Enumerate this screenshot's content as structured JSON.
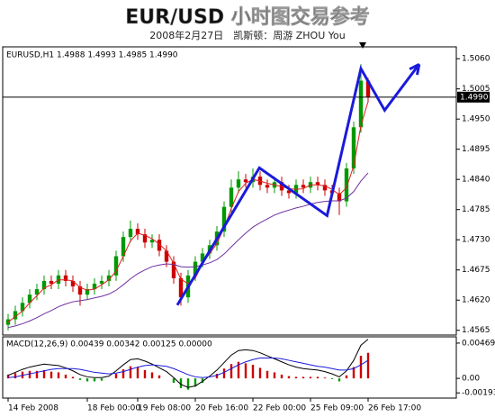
{
  "chart_data": {
    "type": "candlestick",
    "title": "EUR/USD 小时图交易参考",
    "subtitle": "2008年2月27日　凯斯顿：周游 ZHOU You",
    "header_label": "EURUSD,H1  1.4988 1.4993 1.4985 1.4990",
    "up_color": "#009900",
    "down_color": "#cc0000",
    "open": [
      1.4575,
      1.4585,
      1.46,
      1.4615,
      1.463,
      1.464,
      1.4655,
      1.465,
      1.4665,
      1.4655,
      1.4645,
      1.463,
      1.464,
      1.465,
      1.4655,
      1.4665,
      1.47,
      1.4735,
      1.475,
      1.474,
      1.4725,
      1.473,
      1.471,
      1.469,
      1.466,
      1.4625,
      1.4665,
      1.469,
      1.4705,
      1.472,
      1.4745,
      1.479,
      1.4825,
      1.484,
      1.4835,
      1.4845,
      1.483,
      1.4825,
      1.4835,
      1.482,
      1.4815,
      1.483,
      1.4825,
      1.4835,
      1.483,
      1.482,
      1.4815,
      1.48,
      1.486,
      1.4935,
      1.502
    ],
    "high": [
      1.4595,
      1.461,
      1.4625,
      1.464,
      1.465,
      1.4665,
      1.4665,
      1.4675,
      1.4675,
      1.4665,
      1.4655,
      1.465,
      1.466,
      1.4665,
      1.4675,
      1.471,
      1.4745,
      1.4765,
      1.476,
      1.475,
      1.474,
      1.474,
      1.472,
      1.47,
      1.467,
      1.4675,
      1.47,
      1.4715,
      1.473,
      1.4755,
      1.48,
      1.484,
      1.4855,
      1.485,
      1.486,
      1.4855,
      1.484,
      1.4845,
      1.4845,
      1.483,
      1.484,
      1.484,
      1.4845,
      1.4845,
      1.484,
      1.483,
      1.4825,
      1.487,
      1.4945,
      1.505,
      1.5025
    ],
    "low": [
      1.4565,
      1.4575,
      1.459,
      1.4605,
      1.462,
      1.463,
      1.464,
      1.464,
      1.4645,
      1.4635,
      1.461,
      1.462,
      1.463,
      1.464,
      1.4645,
      1.4655,
      1.469,
      1.4725,
      1.473,
      1.4715,
      1.4715,
      1.47,
      1.468,
      1.465,
      1.461,
      1.4615,
      1.4655,
      1.468,
      1.4695,
      1.471,
      1.4735,
      1.478,
      1.4815,
      1.4825,
      1.4825,
      1.482,
      1.4815,
      1.4815,
      1.481,
      1.4805,
      1.4805,
      1.4815,
      1.4815,
      1.482,
      1.481,
      1.4805,
      1.4775,
      1.479,
      1.485,
      1.4925,
      1.498
    ],
    "close": [
      1.4585,
      1.46,
      1.4615,
      1.463,
      1.464,
      1.4655,
      1.465,
      1.4665,
      1.4655,
      1.4645,
      1.463,
      1.464,
      1.465,
      1.4655,
      1.4665,
      1.47,
      1.4735,
      1.475,
      1.474,
      1.4725,
      1.473,
      1.471,
      1.469,
      1.466,
      1.4625,
      1.4665,
      1.469,
      1.4705,
      1.472,
      1.4745,
      1.479,
      1.4825,
      1.484,
      1.4835,
      1.4845,
      1.483,
      1.4825,
      1.4835,
      1.482,
      1.4815,
      1.483,
      1.4825,
      1.4835,
      1.483,
      1.482,
      1.4815,
      1.48,
      1.486,
      1.4935,
      1.502,
      1.499
    ],
    "moving_averages": [
      {
        "color": "#e02020",
        "values": [
          1.458,
          1.459,
          1.46,
          1.4615,
          1.4628,
          1.4642,
          1.4648,
          1.4657,
          1.4657,
          1.4655,
          1.4643,
          1.4638,
          1.464,
          1.4648,
          1.4657,
          1.4673,
          1.47,
          1.4728,
          1.4742,
          1.4738,
          1.4732,
          1.4722,
          1.471,
          1.4687,
          1.4658,
          1.465,
          1.466,
          1.4687,
          1.4705,
          1.4723,
          1.4752,
          1.4787,
          1.4818,
          1.4833,
          1.484,
          1.4837,
          1.4833,
          1.483,
          1.4827,
          1.4823,
          1.4822,
          1.4823,
          1.483,
          1.483,
          1.4828,
          1.4822,
          1.4812,
          1.4825,
          1.4865,
          1.4938,
          1.4982
        ]
      },
      {
        "color": "#7030a0",
        "values": [
          1.457,
          1.4573,
          1.4577,
          1.4582,
          1.4588,
          1.4595,
          1.4601,
          1.4608,
          1.4613,
          1.4617,
          1.4619,
          1.4621,
          1.4624,
          1.4627,
          1.4631,
          1.4638,
          1.4648,
          1.4659,
          1.4668,
          1.4675,
          1.4681,
          1.4684,
          1.4686,
          1.4685,
          1.4681,
          1.468,
          1.4681,
          1.4684,
          1.4688,
          1.4694,
          1.4704,
          1.4717,
          1.473,
          1.4742,
          1.4753,
          1.4761,
          1.4768,
          1.4775,
          1.478,
          1.4784,
          1.4788,
          1.4791,
          1.4795,
          1.4798,
          1.48,
          1.4801,
          1.4801,
          1.4806,
          1.4818,
          1.4837,
          1.4852
        ]
      }
    ],
    "trend_line": {
      "color": "#1a1adb",
      "x": [
        23.5,
        34.9,
        44.3,
        49,
        52.3,
        57.1
      ],
      "y": [
        1.4611,
        1.4861,
        1.4774,
        1.5042,
        1.4966,
        1.505
      ]
    },
    "last_price": {
      "value": 1.499,
      "label": "1.4990"
    },
    "xlim": [
      -0.5,
      62
    ],
    "xticks": [
      {
        "value": 0,
        "label": "14 Feb 2008"
      },
      {
        "value": 11,
        "label": "18 Feb 00:00"
      },
      {
        "value": 18,
        "label": "19 Feb 08:00"
      },
      {
        "value": 26,
        "label": "20 Feb 16:00"
      },
      {
        "value": 34,
        "label": "22 Feb 00:00"
      },
      {
        "value": 42,
        "label": "25 Feb 09:00"
      },
      {
        "value": 50,
        "label": "26 Feb 17:00"
      }
    ],
    "ylim": [
      1.4558,
      1.508
    ],
    "yticks": [
      {
        "value": 1.506,
        "label": "1.5060"
      },
      {
        "value": 1.5005,
        "label": "1.5005"
      },
      {
        "value": 1.495,
        "label": "1.4950"
      },
      {
        "value": 1.4895,
        "label": "1.4895"
      },
      {
        "value": 1.484,
        "label": "1.4840"
      },
      {
        "value": 1.4785,
        "label": "1.4785"
      },
      {
        "value": 1.473,
        "label": "1.4730"
      },
      {
        "value": 1.4675,
        "label": "1.4675"
      },
      {
        "value": 1.462,
        "label": "1.4620"
      },
      {
        "value": 1.4565,
        "label": "1.4565"
      }
    ],
    "macd": {
      "label": "MACD(12,26,9)  0.00439  0.00342  0.00125  0.00000",
      "up_color": "#cc0000",
      "down_color": "#009900",
      "histogram": [
        0.0005,
        0.0007,
        0.0009,
        0.001,
        0.001,
        0.0011,
        0.0009,
        0.0008,
        0.0005,
        0.0002,
        -0.0002,
        -0.0004,
        -0.0004,
        -0.0003,
        0.0,
        0.0006,
        0.0012,
        0.0016,
        0.0015,
        0.0011,
        0.0008,
        0.0004,
        0.0,
        -0.0006,
        -0.0013,
        -0.0015,
        -0.0011,
        -0.0006,
        0.0,
        0.0006,
        0.0013,
        0.0019,
        0.0022,
        0.002,
        0.0018,
        0.0014,
        0.001,
        0.0008,
        0.0005,
        0.0003,
        0.0002,
        0.0002,
        0.0002,
        0.0002,
        0.0001,
        -0.0001,
        -0.0004,
        0.0004,
        0.0015,
        0.003,
        0.0034
      ],
      "macd_line": {
        "color": "#000000",
        "values": [
          0.0004,
          0.0008,
          0.0012,
          0.0015,
          0.0017,
          0.0019,
          0.0018,
          0.0017,
          0.0014,
          0.001,
          0.0005,
          0.0002,
          0.0001,
          0.0001,
          0.0003,
          0.001,
          0.0018,
          0.0025,
          0.0026,
          0.0023,
          0.0019,
          0.0014,
          0.0009,
          0.0001,
          -0.0008,
          -0.0012,
          -0.001,
          -0.0004,
          0.0003,
          0.0011,
          0.0021,
          0.0031,
          0.0037,
          0.0038,
          0.0037,
          0.0034,
          0.003,
          0.0026,
          0.0022,
          0.0018,
          0.0015,
          0.0013,
          0.0012,
          0.0011,
          0.0009,
          0.0006,
          0.0002,
          0.001,
          0.0024,
          0.0044,
          0.0052
        ]
      },
      "signal_line": {
        "color": "#1a1adb",
        "values": [
          0.0001,
          0.0002,
          0.0004,
          0.0006,
          0.0008,
          0.001,
          0.0012,
          0.0013,
          0.0013,
          0.0013,
          0.0012,
          0.001,
          0.0008,
          0.0007,
          0.0006,
          0.0007,
          0.0009,
          0.0012,
          0.0015,
          0.0017,
          0.0018,
          0.0017,
          0.0016,
          0.0013,
          0.0009,
          0.0005,
          0.0002,
          0.0001,
          0.0002,
          0.0004,
          0.0008,
          0.0013,
          0.0018,
          0.0022,
          0.0025,
          0.0027,
          0.0027,
          0.0027,
          0.0026,
          0.0024,
          0.0022,
          0.002,
          0.0018,
          0.0016,
          0.0015,
          0.0013,
          0.0011,
          0.0011,
          0.0013,
          0.0018,
          0.0024
        ]
      },
      "ylim": [
        -0.0025,
        0.0054
      ],
      "yticks": [
        0.00469,
        {
          "value": 0,
          "label": "0.00"
        },
        -0.00193
      ]
    }
  }
}
